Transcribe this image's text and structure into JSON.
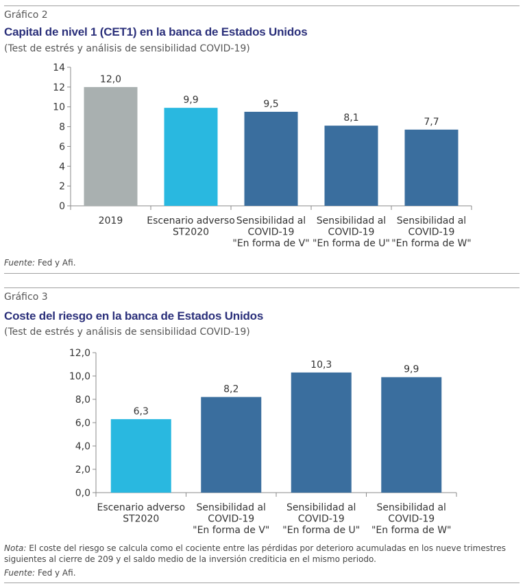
{
  "charts": [
    {
      "label": "Gráfico 2",
      "title": "Capital de nivel 1 (CET1) en la banca de Estados Unidos",
      "subtitle": "(Test de estrés y análisis de sensibilidad COVID-19)",
      "source_label": "Fuente:",
      "source_text": " Fed y Afi."
    },
    {
      "label": "Gráfico 3",
      "title": "Coste del riesgo en la banca de Estados Unidos",
      "subtitle": "(Test de estrés y análisis de sensibilidad COVID-19)",
      "note_label": "Nota:",
      "note_text": " El coste del riesgo se calcula como el cociente entre las pérdidas por deterioro acumuladas en los nueve trimestres siguientes al cierre de 209 y el saldo medio de la inversión crediticia en el mismo periodo.",
      "source_label": "Fuente:",
      "source_text": " Fed y Afi."
    }
  ],
  "chart_data": [
    {
      "type": "bar",
      "categories": [
        [
          "2019"
        ],
        [
          "Escenario adverso",
          "ST2020"
        ],
        [
          "Sensibilidad al",
          "COVID-19",
          "\"En forma de V\""
        ],
        [
          "Sensibilidad al",
          "COVID-19",
          "\"En forma de U\""
        ],
        [
          "Sensibilidad al",
          "COVID-19",
          "\"En forma de W\""
        ]
      ],
      "values": [
        12.0,
        9.9,
        9.5,
        8.1,
        7.7
      ],
      "value_labels": [
        "12,0",
        "9,9",
        "9,5",
        "8,1",
        "7,7"
      ],
      "colors": [
        "#a9b0b0",
        "#29b8e0",
        "#3a6e9e",
        "#3a6e9e",
        "#3a6e9e"
      ],
      "ylim": [
        0,
        14
      ],
      "yticks": [
        "0",
        "2",
        "4",
        "6",
        "8",
        "10",
        "12",
        "14"
      ],
      "grid": false
    },
    {
      "type": "bar",
      "categories": [
        [
          "Escenario adverso",
          "ST2020"
        ],
        [
          "Sensibilidad al",
          "COVID-19",
          "\"En forma de V\""
        ],
        [
          "Sensibilidad al",
          "COVID-19",
          "\"En forma de U\""
        ],
        [
          "Sensibilidad al",
          "COVID-19",
          "\"En forma de W\""
        ]
      ],
      "values": [
        6.3,
        8.2,
        10.3,
        9.9
      ],
      "value_labels": [
        "6,3",
        "8,2",
        "10,3",
        "9,9"
      ],
      "colors": [
        "#29b8e0",
        "#3a6e9e",
        "#3a6e9e",
        "#3a6e9e"
      ],
      "ylim": [
        0,
        12
      ],
      "yticks": [
        "0,0",
        "2,0",
        "4,0",
        "6,0",
        "8,0",
        "10,0",
        "12,0"
      ],
      "grid": false
    }
  ]
}
